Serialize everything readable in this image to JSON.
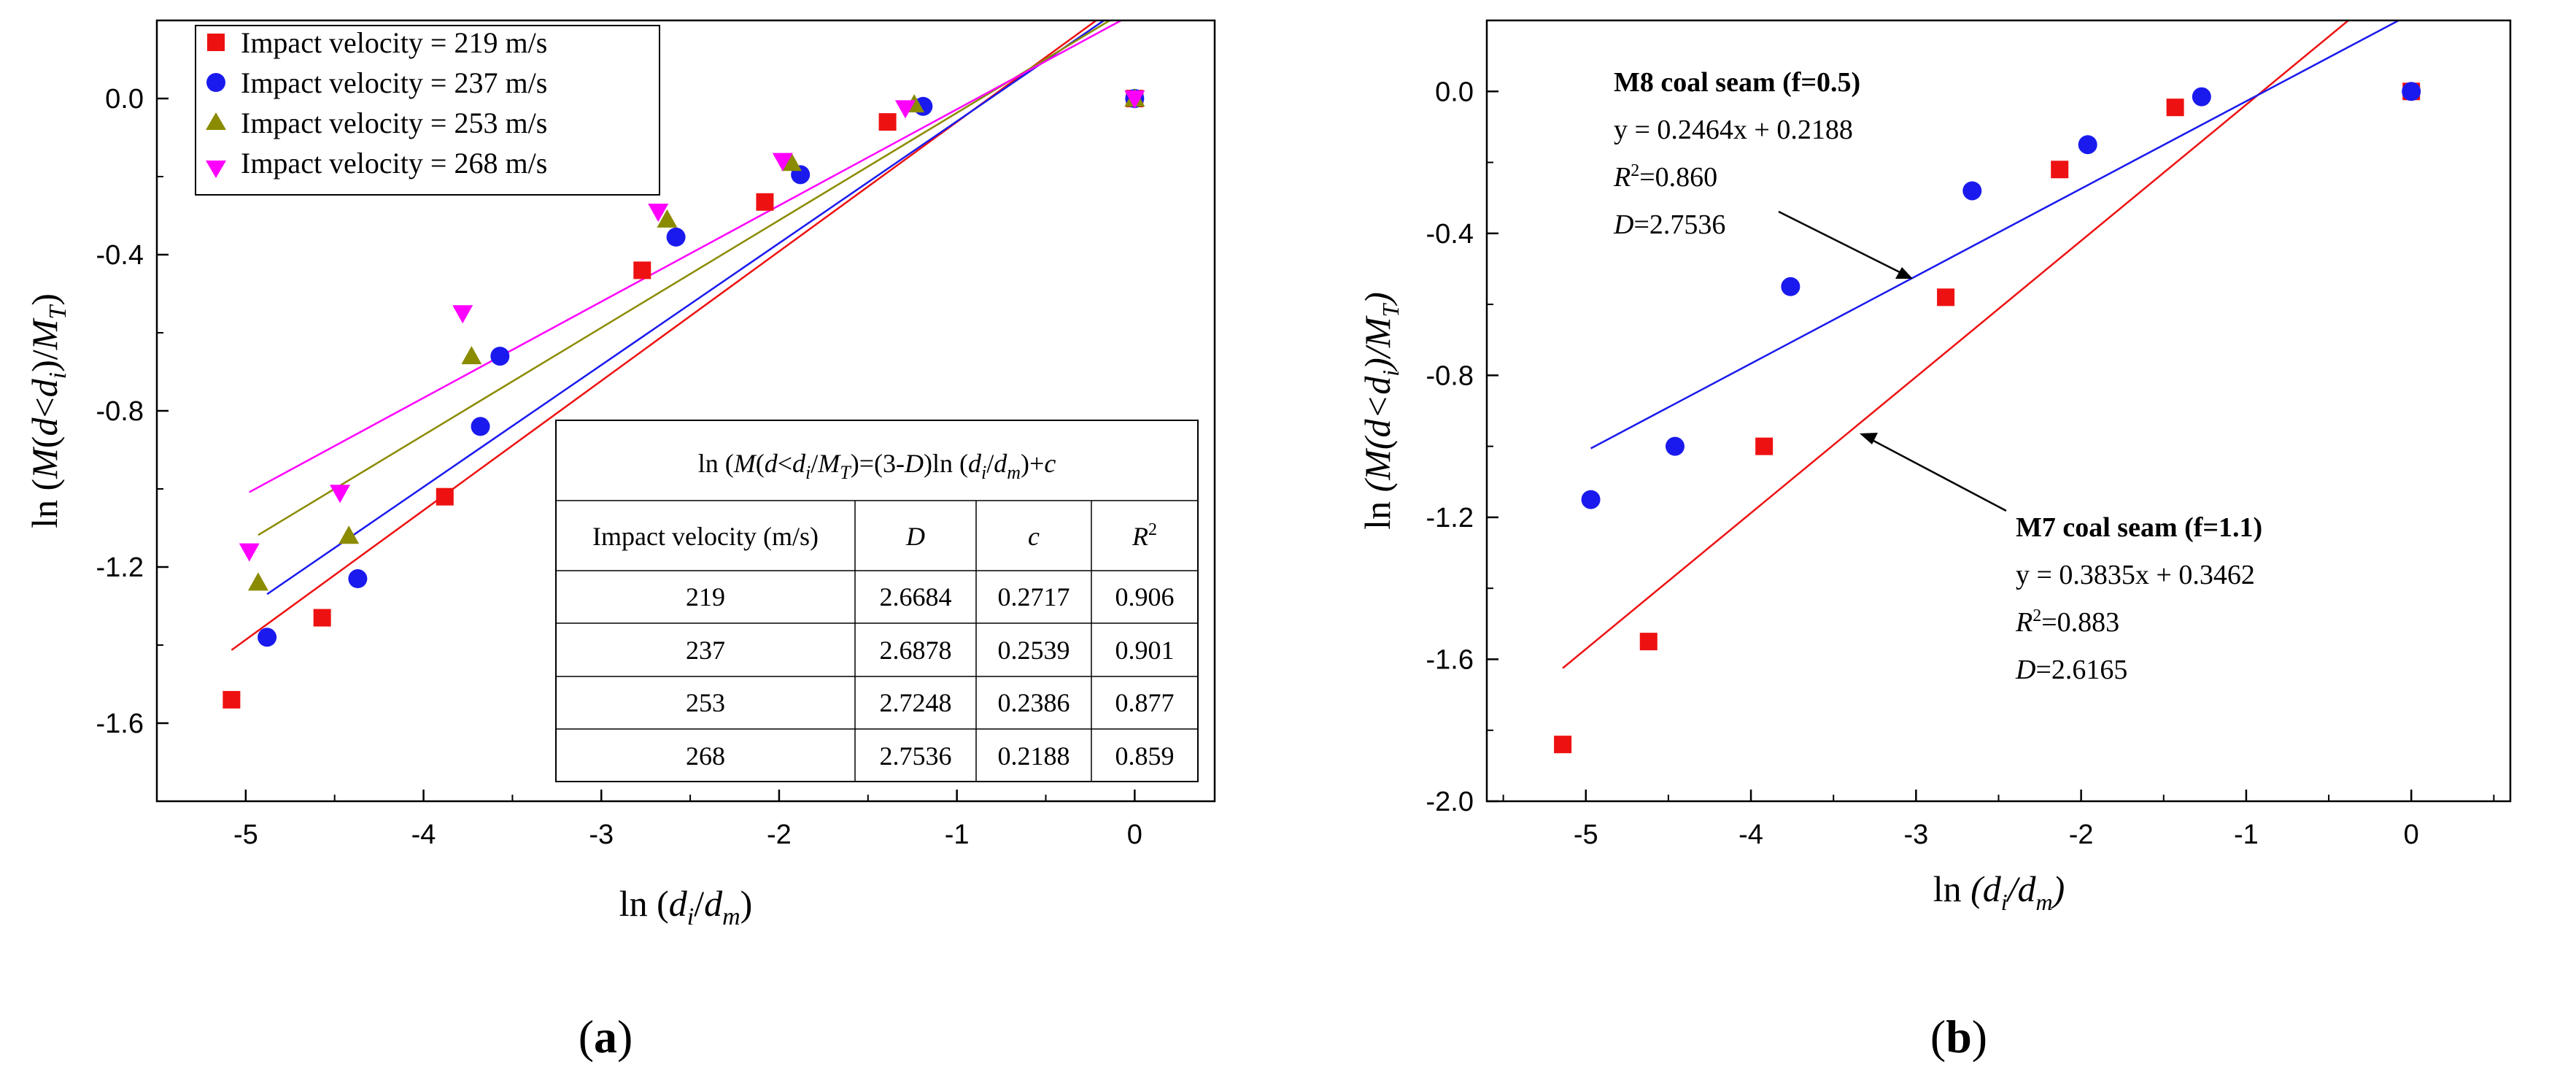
{
  "chart_data": [
    {
      "id": "a",
      "type": "scatter",
      "panel_label": "(a)",
      "xlabel": "ln (d_i/d_m)",
      "ylabel": "ln (M(d<d_i)/M_T)",
      "xlim": [
        -5.5,
        0.45
      ],
      "ylim": [
        -1.8,
        0.2
      ],
      "xticks": [
        -5,
        -4,
        -3,
        -2,
        -1,
        0
      ],
      "yticks": [
        0.0,
        -0.4,
        -0.8,
        -1.2,
        -1.6
      ],
      "ytick_labels": [
        "0.0",
        "-0.4",
        "-0.8",
        "-1.2",
        "-1.6"
      ],
      "series": [
        {
          "name": "Impact velocity = 219 m/s",
          "color": "#ee1111",
          "marker": "square",
          "x": [
            -5.08,
            -4.57,
            -3.88,
            -2.77,
            -2.08,
            -1.39,
            0
          ],
          "y": [
            -1.54,
            -1.33,
            -1.02,
            -0.44,
            -0.265,
            -0.06,
            0
          ],
          "fit": {
            "slope": 0.3316,
            "intercept": 0.2717,
            "x_range": [
              -5.08,
              0
            ]
          }
        },
        {
          "name": "Impact velocity = 237 m/s",
          "color": "#1a1aee",
          "marker": "circle",
          "x": [
            -4.88,
            -4.37,
            -3.68,
            -3.57,
            -2.58,
            -1.88,
            -1.19,
            0
          ],
          "y": [
            -1.38,
            -1.23,
            -0.84,
            -0.66,
            -0.355,
            -0.195,
            -0.02,
            0
          ],
          "fit": {
            "slope": 0.3122,
            "intercept": 0.2539,
            "x_range": [
              -4.88,
              0
            ]
          }
        },
        {
          "name": "Impact velocity = 253 m/s",
          "color": "#8b8b00",
          "marker": "triangle-up",
          "x": [
            -4.93,
            -4.42,
            -3.73,
            -2.63,
            -1.93,
            -1.24,
            0
          ],
          "y": [
            -1.24,
            -1.12,
            -0.66,
            -0.31,
            -0.165,
            -0.015,
            0
          ],
          "fit": {
            "slope": 0.2752,
            "intercept": 0.2386,
            "x_range": [
              -4.93,
              0
            ]
          }
        },
        {
          "name": "Impact velocity = 268 m/s",
          "color": "#ff00ff",
          "marker": "triangle-down",
          "x": [
            -4.98,
            -4.47,
            -3.78,
            -2.68,
            -1.98,
            -1.29,
            0
          ],
          "y": [
            -1.16,
            -1.01,
            -0.55,
            -0.29,
            -0.16,
            -0.025,
            0
          ],
          "fit": {
            "slope": 0.2464,
            "intercept": 0.2188,
            "x_range": [
              -4.98,
              0
            ]
          }
        }
      ],
      "table": {
        "equation": "ln (M(d<d_i)/M_T)=(3-D)ln (d_i/d_m)+c",
        "headers": [
          "Impact velocity (m/s)",
          "D",
          "c",
          "R2"
        ],
        "rows": [
          [
            "219",
            "2.6684",
            "0.2717",
            "0.906"
          ],
          [
            "237",
            "2.6878",
            "0.2539",
            "0.901"
          ],
          [
            "253",
            "2.7248",
            "0.2386",
            "0.877"
          ],
          [
            "268",
            "2.7536",
            "0.2188",
            "0.859"
          ]
        ]
      }
    },
    {
      "id": "b",
      "type": "scatter",
      "panel_label": "(b)",
      "xlabel": "ln (d_i/d_m)",
      "ylabel": "ln (M(d<d_i)/M_T)",
      "xlim": [
        -5.6,
        0.6
      ],
      "ylim": [
        -2.0,
        0.2
      ],
      "xticks": [
        -5,
        -4,
        -3,
        -2,
        -1,
        0
      ],
      "yticks": [
        0.0,
        -0.4,
        -0.8,
        -1.2,
        -1.6,
        -2.0
      ],
      "ytick_labels": [
        "0.0",
        "-0.4",
        "-0.8",
        "-1.2",
        "-1.6",
        "-2.0"
      ],
      "series": [
        {
          "name": "M7 coal seam (f=1.1)",
          "color": "#ee1111",
          "marker": "square",
          "x": [
            -5.14,
            -4.62,
            -3.92,
            -2.82,
            -2.13,
            -1.43,
            0
          ],
          "y": [
            -1.84,
            -1.55,
            -1.0,
            -0.58,
            -0.22,
            -0.045,
            0
          ],
          "fit": {
            "slope": 0.3835,
            "intercept": 0.3462,
            "x_range": [
              -5.14,
              0
            ]
          }
        },
        {
          "name": "M8 coal seam (f=0.5)",
          "color": "#1a1aee",
          "marker": "circle",
          "x": [
            -4.97,
            -4.46,
            -3.76,
            -2.66,
            -1.96,
            -1.27,
            0
          ],
          "y": [
            -1.15,
            -1.0,
            -0.55,
            -0.28,
            -0.15,
            -0.015,
            0
          ],
          "fit": {
            "slope": 0.2464,
            "intercept": 0.2188,
            "x_range": [
              -4.97,
              0
            ]
          }
        }
      ],
      "annotations": [
        {
          "id": "m8",
          "title": "M8 coal seam (f=0.5)",
          "equation": "y = 0.2464x + 0.2188",
          "r2": "=0.860",
          "d": "=2.7536"
        },
        {
          "id": "m7",
          "title": "M7 coal seam (f=1.1)",
          "equation": "y = 0.3835x + 0.3462",
          "r2": "=0.883",
          "d": "=2.6165"
        }
      ]
    }
  ]
}
